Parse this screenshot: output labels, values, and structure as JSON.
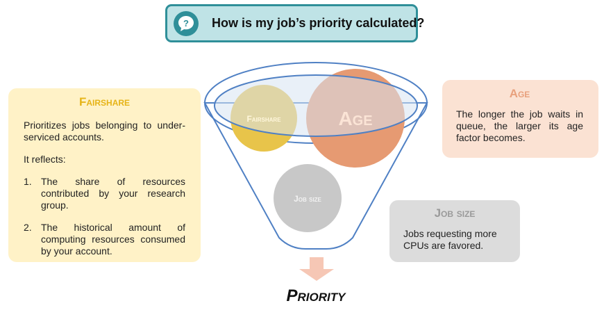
{
  "title": "How is my job’s priority calculated?",
  "icons": {
    "help": "question-bubble-icon"
  },
  "colors": {
    "teal": "#2f8f99",
    "fairshare": "#e8c44a",
    "age": "#e69a72",
    "jobsize": "#c8c8c8",
    "arrow": "#f6c7b5"
  },
  "fairshare": {
    "title": "Fairshare",
    "description": "Prioritizes jobs belonging to under-serviced accounts.",
    "reflects_label": "It reflects:",
    "items": [
      {
        "number": "1.",
        "text": "The share of resources contributed by your research group."
      },
      {
        "number": "2.",
        "text": "The historical amount of computing resources consumed by your account."
      }
    ]
  },
  "age": {
    "title": "Age",
    "description": "The longer the job waits in queue, the larger its age factor becomes."
  },
  "job_size": {
    "title": "Job size",
    "description": "Jobs requesting more CPUs are favored."
  },
  "funnel": {
    "fairshare_label": "Fairshare",
    "age_label": "Age",
    "job_size_label": "Job size"
  },
  "result": "Priority"
}
